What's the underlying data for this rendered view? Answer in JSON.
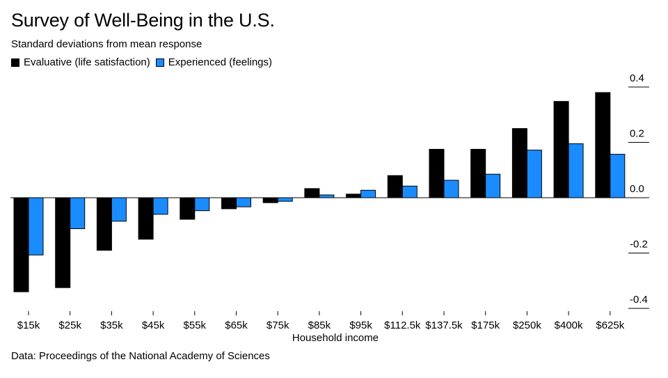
{
  "title": "Survey of Well-Being in the U.S.",
  "subtitle": "Standard deviations from mean response",
  "source": "Data: Proceedings of the National Academy of Sciences",
  "colors": {
    "evaluative": "#000000",
    "experienced": "#1a8cff",
    "axis": "#000000",
    "grid": "#000000"
  },
  "chart_data": {
    "type": "bar",
    "title": "Survey of Well-Being in the U.S.",
    "subtitle": "Standard deviations from mean response",
    "xlabel": "Household income",
    "ylabel": "",
    "ylim": [
      -0.4,
      0.4
    ],
    "yticks": [
      0.4,
      0.2,
      0.0,
      -0.2,
      -0.4
    ],
    "ytick_labels": [
      "0.4",
      "0.2",
      "0.0",
      "-0.2",
      "-0.4"
    ],
    "y_axis_position": "right",
    "legend_position": "top-left",
    "categories": [
      "$15k",
      "$25k",
      "$35k",
      "$45k",
      "$55k",
      "$65k",
      "$75k",
      "$85k",
      "$95k",
      "$112.5k",
      "$137.5k",
      "$175k",
      "$250k",
      "$400k",
      "$625k"
    ],
    "series": [
      {
        "name": "Evaluative (life satisfaction)",
        "color": "#000000",
        "values": [
          -0.34,
          -0.325,
          -0.19,
          -0.15,
          -0.078,
          -0.04,
          -0.018,
          0.033,
          0.013,
          0.08,
          0.175,
          0.175,
          0.25,
          0.348,
          0.38
        ]
      },
      {
        "name": "Experienced (feelings)",
        "color": "#1a8cff",
        "values": [
          -0.207,
          -0.112,
          -0.085,
          -0.06,
          -0.047,
          -0.033,
          -0.013,
          0.01,
          0.027,
          0.042,
          0.063,
          0.085,
          0.172,
          0.195,
          0.157
        ]
      }
    ]
  }
}
